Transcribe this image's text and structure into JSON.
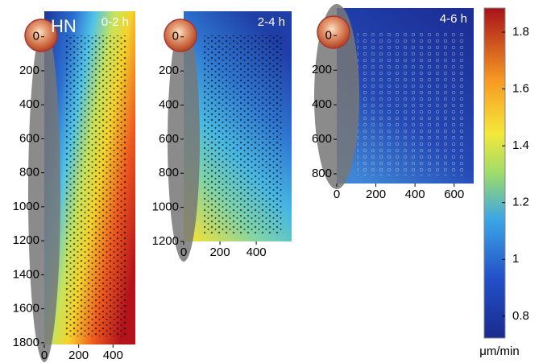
{
  "chart_data": [
    {
      "type": "heatmap",
      "title": "0-2 h",
      "label": "HN",
      "xlim": [
        0,
        530
      ],
      "xticks": [
        0,
        200,
        400
      ],
      "ylim": [
        -150,
        1810
      ],
      "yticks": [
        0,
        200,
        400,
        600,
        800,
        1000,
        1200,
        1400,
        1600,
        1800
      ]
    },
    {
      "type": "heatmap",
      "title": "2-4 h",
      "xlim": [
        0,
        595
      ],
      "xticks": [
        0,
        200,
        400
      ],
      "ylim": [
        -150,
        1200
      ],
      "yticks": [
        0,
        200,
        400,
        600,
        800,
        1000,
        1200
      ]
    },
    {
      "type": "heatmap",
      "title": "4-6 h",
      "xlim": [
        0,
        700
      ],
      "xticks": [
        0,
        200,
        400,
        600
      ],
      "ylim": [
        -160,
        856
      ],
      "yticks": [
        0,
        200,
        400,
        600,
        800
      ]
    },
    {
      "type": "colorbar",
      "label": "μm/min",
      "ylim": [
        0.723,
        1.885
      ],
      "yticks": [
        0.8,
        1.0,
        1.2,
        1.4,
        1.6,
        1.8
      ]
    }
  ]
}
